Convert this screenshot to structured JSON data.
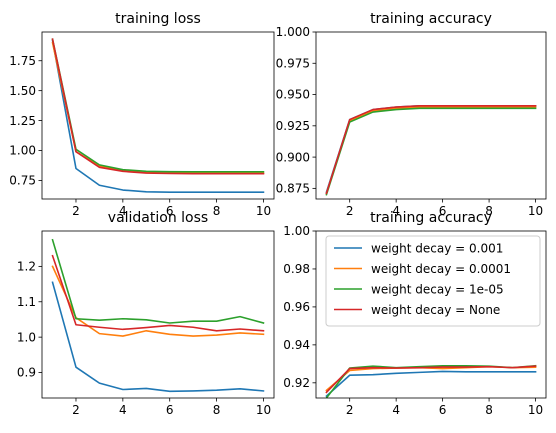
{
  "chart_data": [
    {
      "type": "line",
      "title": "training loss",
      "xlabel": "",
      "ylabel": "",
      "xlim": [
        0.55,
        10.45
      ],
      "ylim": [
        0.595,
        1.99
      ],
      "x_ticks": [
        2,
        4,
        6,
        8,
        10
      ],
      "x_tick_labels": [
        "2",
        "4",
        "6",
        "8",
        "10"
      ],
      "y_ticks": [
        0.75,
        1.0,
        1.25,
        1.5,
        1.75
      ],
      "y_tick_labels": [
        "0.75",
        "1.00",
        "1.25",
        "1.50",
        "1.75"
      ],
      "x": [
        1,
        2,
        3,
        4,
        5,
        6,
        7,
        8,
        9,
        10
      ],
      "series": [
        {
          "color": "#1f77b4",
          "values": [
            1.92,
            0.85,
            0.71,
            0.67,
            0.655,
            0.652,
            0.652,
            0.652,
            0.652,
            0.652
          ]
        },
        {
          "color": "#ff7f0e",
          "values": [
            1.9,
            0.99,
            0.87,
            0.83,
            0.815,
            0.812,
            0.811,
            0.81,
            0.81,
            0.81
          ]
        },
        {
          "color": "#2ca02c",
          "values": [
            1.93,
            1.01,
            0.88,
            0.84,
            0.826,
            0.823,
            0.822,
            0.822,
            0.822,
            0.822
          ]
        },
        {
          "color": "#d62728",
          "values": [
            1.93,
            0.99,
            0.86,
            0.826,
            0.812,
            0.808,
            0.806,
            0.806,
            0.806,
            0.806
          ]
        }
      ],
      "grid": false,
      "legend": null
    },
    {
      "type": "line",
      "title": "training accuracy",
      "xlabel": "",
      "ylabel": "",
      "xlim": [
        0.55,
        10.45
      ],
      "ylim": [
        0.8665,
        1.0
      ],
      "x_ticks": [
        2,
        4,
        6,
        8,
        10
      ],
      "x_tick_labels": [
        "2",
        "4",
        "6",
        "8",
        "10"
      ],
      "y_ticks": [
        0.875,
        0.9,
        0.925,
        0.95,
        0.975,
        1.0
      ],
      "y_tick_labels": [
        "0.875",
        "0.900",
        "0.925",
        "0.950",
        "0.975",
        "1.000"
      ],
      "x": [
        1,
        2,
        3,
        4,
        5,
        6,
        7,
        8,
        9,
        10
      ],
      "series": [
        {
          "color": "#1f77b4",
          "values": [
            0.872,
            0.93,
            0.938,
            0.94,
            0.941,
            0.941,
            0.941,
            0.941,
            0.941,
            0.941
          ]
        },
        {
          "color": "#ff7f0e",
          "values": [
            0.871,
            0.929,
            0.937,
            0.939,
            0.94,
            0.94,
            0.94,
            0.94,
            0.94,
            0.94
          ]
        },
        {
          "color": "#2ca02c",
          "values": [
            0.87,
            0.928,
            0.936,
            0.938,
            0.939,
            0.939,
            0.939,
            0.939,
            0.939,
            0.939
          ]
        },
        {
          "color": "#d62728",
          "values": [
            0.871,
            0.93,
            0.938,
            0.94,
            0.941,
            0.941,
            0.941,
            0.941,
            0.941,
            0.941
          ]
        }
      ],
      "grid": false,
      "legend": null
    },
    {
      "type": "line",
      "title": "validation loss",
      "xlabel": "",
      "ylabel": "",
      "xlim": [
        0.55,
        10.45
      ],
      "ylim": [
        0.828,
        1.3
      ],
      "x_ticks": [
        2,
        4,
        6,
        8,
        10
      ],
      "x_tick_labels": [
        "2",
        "4",
        "6",
        "8",
        "10"
      ],
      "y_ticks": [
        0.9,
        1.0,
        1.1,
        1.2
      ],
      "y_tick_labels": [
        "0.9",
        "1.0",
        "1.1",
        "1.2"
      ],
      "x": [
        1,
        2,
        3,
        4,
        5,
        6,
        7,
        8,
        9,
        10
      ],
      "series": [
        {
          "color": "#1f77b4",
          "values": [
            1.155,
            0.915,
            0.87,
            0.852,
            0.855,
            0.847,
            0.848,
            0.85,
            0.854,
            0.848
          ]
        },
        {
          "color": "#ff7f0e",
          "values": [
            1.2,
            1.055,
            1.01,
            1.003,
            1.018,
            1.008,
            1.003,
            1.006,
            1.012,
            1.008
          ]
        },
        {
          "color": "#2ca02c",
          "values": [
            1.275,
            1.052,
            1.048,
            1.052,
            1.049,
            1.04,
            1.045,
            1.045,
            1.058,
            1.04
          ]
        },
        {
          "color": "#d62728",
          "values": [
            1.23,
            1.035,
            1.028,
            1.022,
            1.027,
            1.033,
            1.028,
            1.018,
            1.023,
            1.018
          ]
        }
      ],
      "grid": false,
      "legend": null
    },
    {
      "type": "line",
      "title": "training accuracy",
      "xlabel": "",
      "ylabel": "",
      "xlim": [
        0.55,
        10.45
      ],
      "ylim": [
        0.912,
        1.0
      ],
      "x_ticks": [
        2,
        4,
        6,
        8,
        10
      ],
      "x_tick_labels": [
        "2",
        "4",
        "6",
        "8",
        "10"
      ],
      "y_ticks": [
        0.92,
        0.94,
        0.96,
        0.98,
        1.0
      ],
      "y_tick_labels": [
        "0.92",
        "0.94",
        "0.96",
        "0.98",
        "1.00"
      ],
      "x": [
        1,
        2,
        3,
        4,
        5,
        6,
        7,
        8,
        9,
        10
      ],
      "series": [
        {
          "name": "weight decay = 0.001",
          "color": "#1f77b4",
          "values": [
            0.913,
            0.924,
            0.9243,
            0.925,
            0.9255,
            0.926,
            0.9258,
            0.9258,
            0.9258,
            0.9258
          ]
        },
        {
          "name": "weight decay = 0.0001",
          "color": "#ff7f0e",
          "values": [
            0.916,
            0.9265,
            0.9275,
            0.9278,
            0.928,
            0.9275,
            0.928,
            0.9285,
            0.928,
            0.9282
          ]
        },
        {
          "name": "weight decay = 1e-05",
          "color": "#2ca02c",
          "values": [
            0.912,
            0.9278,
            0.9288,
            0.928,
            0.9285,
            0.929,
            0.929,
            0.9288,
            0.928,
            0.929
          ]
        },
        {
          "name": "weight decay = None",
          "color": "#d62728",
          "values": [
            0.915,
            0.9275,
            0.928,
            0.9278,
            0.928,
            0.9283,
            0.9283,
            0.9285,
            0.928,
            0.9288
          ]
        }
      ],
      "grid": false,
      "legend": "upper-left"
    }
  ]
}
